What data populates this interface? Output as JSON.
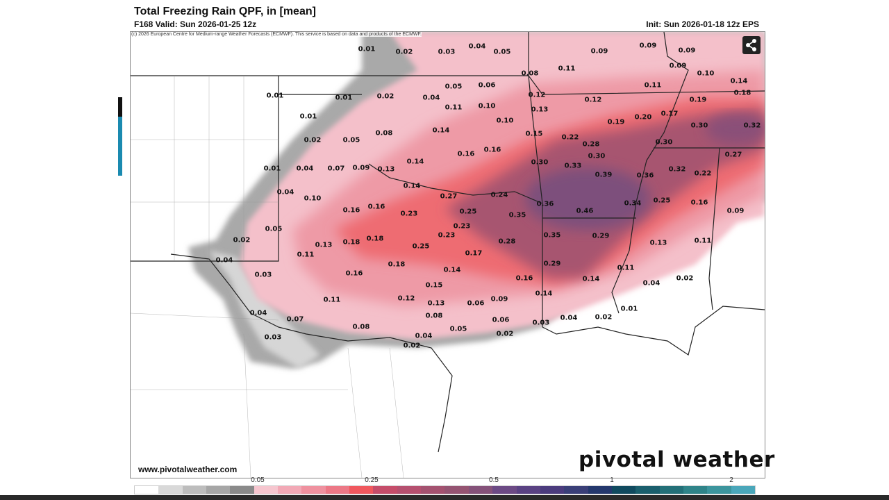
{
  "header": {
    "title": "Total Freezing Rain QPF, in [mean]",
    "valid": "F168 Valid: Sun 2026-01-25 12z",
    "init": "Init: Sun 2026-01-18 12z EPS"
  },
  "map": {
    "copyright": "(c) 2026 European Centre for Medium-range Weather Forecasts (ECMWF). This service is based on data and products of the ECMWF.",
    "share_icon": "share-icon",
    "labels": [
      "0.01",
      "0.02",
      "0.03",
      "0.04",
      "0.05",
      "0.09",
      "0.09",
      "0.09",
      "0.09",
      "0.10",
      "0.08",
      "0.11",
      "0.14",
      "0.18",
      "0.01",
      "0.01",
      "0.02",
      "0.04",
      "0.05",
      "0.06",
      "0.11",
      "0.10",
      "0.12",
      "0.12",
      "0.11",
      "0.19",
      "0.13",
      "0.10",
      "0.19",
      "0.20",
      "0.17",
      "0.30",
      "0.32",
      "0.01",
      "0.08",
      "0.14",
      "0.15",
      "0.22",
      "0.28",
      "0.30",
      "0.02",
      "0.05",
      "0.16",
      "0.16",
      "0.30",
      "0.27",
      "0.14",
      "0.30",
      "0.33",
      "0.01",
      "0.04",
      "0.07",
      "0.09",
      "0.13",
      "0.39",
      "0.36",
      "0.32",
      "0.22",
      "0.14",
      "0.27",
      "0.24",
      "0.04",
      "0.10",
      "0.16",
      "0.16",
      "0.23",
      "0.25",
      "0.36",
      "0.46",
      "0.34",
      "0.25",
      "0.16",
      "0.09",
      "0.35",
      "0.23",
      "0.05",
      "0.02",
      "0.13",
      "0.18",
      "0.18",
      "0.25",
      "0.23",
      "0.17",
      "0.28",
      "0.35",
      "0.29",
      "0.13",
      "0.11",
      "0.11",
      "0.04",
      "0.18",
      "0.14",
      "0.29",
      "0.11",
      "0.03",
      "0.16",
      "0.16",
      "0.14",
      "0.04",
      "0.02",
      "0.15",
      "0.14",
      "0.11",
      "0.12",
      "0.13",
      "0.06",
      "0.09",
      "0.01",
      "0.04",
      "0.07",
      "0.08",
      "0.06",
      "0.04",
      "0.02",
      "0.03",
      "0.08",
      "0.05",
      "0.03",
      "0.04",
      "0.02",
      "0.02"
    ],
    "url": "www.pivotalweather.com",
    "brand": "pivotal weather"
  },
  "colorbar": {
    "ticks": [
      "0.05",
      "0.25",
      "0.5",
      "1",
      "2"
    ],
    "colors": [
      "#ffffff",
      "#d9d9d9",
      "#bdbdbd",
      "#a6a6a6",
      "#8a8a8a",
      "#f6c6cf",
      "#f2a9b6",
      "#ef919f",
      "#ec7886",
      "#f0585e",
      "#c54d6a",
      "#b5506f",
      "#a45270",
      "#955472",
      "#85527a",
      "#6c4a85",
      "#5a4283",
      "#4b3c7e",
      "#3a3f78",
      "#24386d",
      "#104a5f",
      "#1a5f6d",
      "#237078",
      "#2f8489",
      "#3c959d",
      "#4aa7ba"
    ]
  }
}
